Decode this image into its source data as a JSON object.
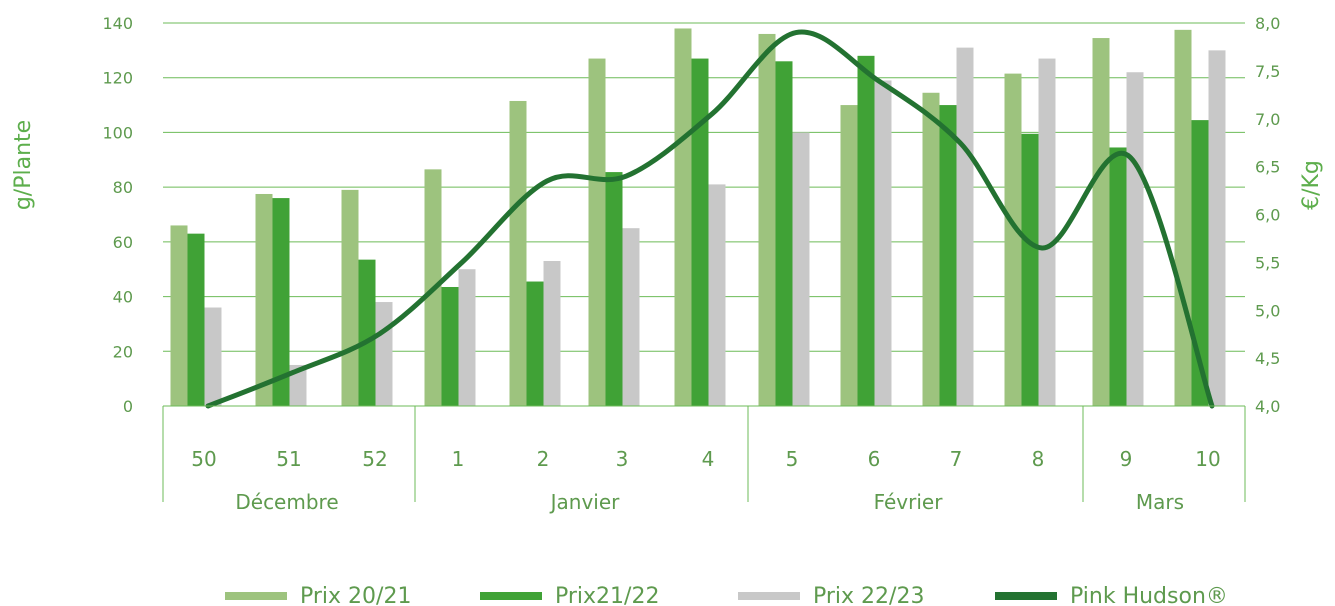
{
  "chart_data": {
    "type": "bar",
    "categories": [
      "50",
      "51",
      "52",
      "1",
      "2",
      "3",
      "4",
      "5",
      "6",
      "7",
      "8",
      "9",
      "10"
    ],
    "months": [
      {
        "label": "Décembre",
        "from": 0,
        "to": 2
      },
      {
        "label": "Janvier",
        "from": 3,
        "to": 6
      },
      {
        "label": "Février",
        "from": 7,
        "to": 10
      },
      {
        "label": "Mars",
        "from": 11,
        "to": 12
      }
    ],
    "series": [
      {
        "name": "Prix 20/21",
        "axis": "left",
        "color": "#9dc37e",
        "values": [
          66,
          77.5,
          79,
          86.5,
          111.5,
          127,
          138,
          136,
          110,
          114.5,
          121.5,
          134.5,
          137.5
        ]
      },
      {
        "name": "Prix21/22",
        "axis": "left",
        "color": "#40a236",
        "values": [
          63,
          76,
          53.5,
          43.5,
          45.5,
          85.5,
          127,
          126,
          128,
          110,
          99.5,
          94.5,
          104.5
        ]
      },
      {
        "name": "Prix 22/23",
        "axis": "left",
        "color": "#c8c8c8",
        "values": [
          36,
          15,
          38,
          50,
          53,
          65,
          81,
          100,
          119,
          131,
          127,
          122,
          130
        ]
      },
      {
        "name": "Pink Hudson®",
        "axis": "right",
        "type": "line",
        "color": "#237231",
        "values": [
          4.0,
          4.35,
          4.75,
          5.5,
          6.35,
          6.4,
          7.05,
          7.9,
          7.4,
          6.75,
          5.65,
          6.6,
          4.0
        ]
      }
    ],
    "ylabel_left": "g/Plante",
    "ylabel_right": "€/Kg",
    "ylim_left": [
      0,
      140
    ],
    "yticks_left": [
      "0",
      "20",
      "40",
      "60",
      "80",
      "100",
      "120",
      "140"
    ],
    "ylim_right": [
      4.0,
      8.0
    ],
    "yticks_right": [
      "4,0",
      "4,5",
      "5,0",
      "5,5",
      "6,0",
      "6,5",
      "7,0",
      "7,5",
      "8,0"
    ],
    "grid": true,
    "legend_position": "bottom"
  }
}
